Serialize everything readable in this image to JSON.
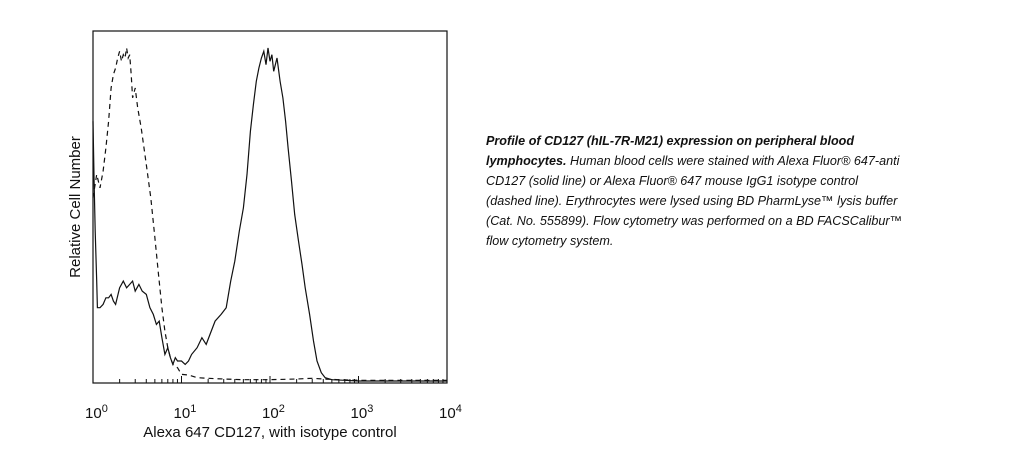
{
  "chart_data": {
    "type": "line",
    "xscale": "log",
    "xlim": [
      1,
      10000
    ],
    "ylim": [
      0,
      1
    ],
    "xlabel": "Alexa 647 CD127, with isotype control",
    "ylabel": "Relative Cell Number",
    "grid": false,
    "x_tick_labels": [
      {
        "base": "10",
        "exp": "0"
      },
      {
        "base": "10",
        "exp": "1"
      },
      {
        "base": "10",
        "exp": "2"
      },
      {
        "base": "10",
        "exp": "3"
      },
      {
        "base": "10",
        "exp": "4"
      }
    ],
    "series": [
      {
        "style": "solid",
        "points": [
          [
            1.0,
            0.78
          ],
          [
            1.03,
            0.6
          ],
          [
            1.06,
            0.45
          ],
          [
            1.1,
            0.3
          ],
          [
            1.12,
            0.22
          ],
          [
            1.2,
            0.22
          ],
          [
            1.3,
            0.23
          ],
          [
            1.4,
            0.25
          ],
          [
            1.5,
            0.25
          ],
          [
            1.6,
            0.26
          ],
          [
            1.7,
            0.24
          ],
          [
            1.8,
            0.23
          ],
          [
            2.0,
            0.28
          ],
          [
            2.2,
            0.3
          ],
          [
            2.4,
            0.28
          ],
          [
            2.6,
            0.29
          ],
          [
            2.8,
            0.3
          ],
          [
            3.0,
            0.27
          ],
          [
            3.3,
            0.29
          ],
          [
            3.6,
            0.27
          ],
          [
            4.0,
            0.26
          ],
          [
            4.4,
            0.22
          ],
          [
            4.8,
            0.2
          ],
          [
            5.2,
            0.17
          ],
          [
            5.6,
            0.18
          ],
          [
            6.0,
            0.13
          ],
          [
            6.5,
            0.08
          ],
          [
            7.0,
            0.1
          ],
          [
            7.5,
            0.07
          ],
          [
            8.0,
            0.05
          ],
          [
            8.5,
            0.07
          ],
          [
            9.0,
            0.06
          ],
          [
            10.0,
            0.06
          ],
          [
            11.0,
            0.05
          ],
          [
            12.0,
            0.06
          ],
          [
            13.0,
            0.08
          ],
          [
            15.0,
            0.1
          ],
          [
            17.0,
            0.13
          ],
          [
            19.0,
            0.11
          ],
          [
            21.0,
            0.14
          ],
          [
            24.0,
            0.18
          ],
          [
            28.0,
            0.2
          ],
          [
            32.0,
            0.22
          ],
          [
            36.0,
            0.3
          ],
          [
            40.0,
            0.36
          ],
          [
            45.0,
            0.45
          ],
          [
            50.0,
            0.52
          ],
          [
            55.0,
            0.62
          ],
          [
            60.0,
            0.75
          ],
          [
            65.0,
            0.83
          ],
          [
            70.0,
            0.9
          ],
          [
            75.0,
            0.94
          ],
          [
            80.0,
            0.97
          ],
          [
            85.0,
            0.99
          ],
          [
            90.0,
            0.95
          ],
          [
            95.0,
            1.0
          ],
          [
            100.0,
            0.96
          ],
          [
            105.0,
            0.98
          ],
          [
            110.0,
            0.93
          ],
          [
            120.0,
            0.97
          ],
          [
            130.0,
            0.9
          ],
          [
            140.0,
            0.85
          ],
          [
            150.0,
            0.78
          ],
          [
            160.0,
            0.7
          ],
          [
            175.0,
            0.6
          ],
          [
            190.0,
            0.5
          ],
          [
            210.0,
            0.42
          ],
          [
            230.0,
            0.35
          ],
          [
            250.0,
            0.28
          ],
          [
            280.0,
            0.2
          ],
          [
            310.0,
            0.12
          ],
          [
            340.0,
            0.06
          ],
          [
            380.0,
            0.025
          ],
          [
            420.0,
            0.01
          ],
          [
            500.0,
            0.004
          ],
          [
            700.0,
            0.002
          ],
          [
            1000.0,
            0.0
          ],
          [
            10000.0,
            0.0
          ]
        ]
      },
      {
        "style": "dashed",
        "points": [
          [
            1.0,
            0.55
          ],
          [
            1.1,
            0.62
          ],
          [
            1.2,
            0.58
          ],
          [
            1.3,
            0.63
          ],
          [
            1.4,
            0.7
          ],
          [
            1.5,
            0.78
          ],
          [
            1.6,
            0.88
          ],
          [
            1.7,
            0.92
          ],
          [
            1.8,
            0.94
          ],
          [
            1.9,
            0.97
          ],
          [
            2.0,
            0.99
          ],
          [
            2.1,
            0.96
          ],
          [
            2.2,
            0.98
          ],
          [
            2.3,
            0.97
          ],
          [
            2.4,
            1.0
          ],
          [
            2.5,
            0.97
          ],
          [
            2.6,
            0.98
          ],
          [
            2.7,
            0.92
          ],
          [
            2.8,
            0.85
          ],
          [
            3.0,
            0.88
          ],
          [
            3.2,
            0.82
          ],
          [
            3.5,
            0.76
          ],
          [
            4.0,
            0.65
          ],
          [
            4.5,
            0.55
          ],
          [
            5.0,
            0.43
          ],
          [
            5.5,
            0.32
          ],
          [
            6.0,
            0.22
          ],
          [
            6.5,
            0.15
          ],
          [
            7.0,
            0.1
          ],
          [
            7.5,
            0.07
          ],
          [
            8.0,
            0.05
          ],
          [
            9.0,
            0.04
          ],
          [
            10.0,
            0.02
          ],
          [
            12.0,
            0.018
          ],
          [
            15.0,
            0.01
          ],
          [
            20.0,
            0.008
          ],
          [
            30.0,
            0.006
          ],
          [
            50.0,
            0.004
          ],
          [
            100.0,
            0.004
          ],
          [
            200.0,
            0.006
          ],
          [
            300.0,
            0.008
          ],
          [
            400.0,
            0.006
          ],
          [
            600.0,
            0.004
          ],
          [
            1000.0,
            0.002
          ],
          [
            10000.0,
            0.002
          ]
        ]
      }
    ]
  },
  "caption": {
    "lead": "Profile of CD127 (hIL-7R-M21) expression on peripheral blood lymphocytes.",
    "body": "Human blood cells were stained with Alexa Fluor® 647-anti CD127 (solid line) or Alexa Fluor® 647 mouse IgG1 isotype control (dashed line). Erythrocytes were lysed using BD PharmLyse™ lysis buffer (Cat. No. 555899).  Flow cytometry was performed on a BD FACSCalibur™ flow cytometry system."
  }
}
